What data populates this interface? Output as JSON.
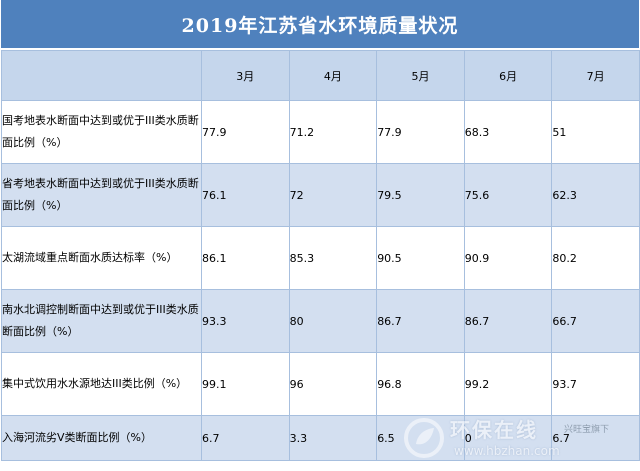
{
  "title": "2019年江苏省水环境质量状况",
  "columns": [
    "",
    "3月",
    "4月",
    "5月",
    "6月",
    "7月"
  ],
  "rows": [
    {
      "label": "国考地表水断面中达到或优于III类水质断面比例（%）",
      "values": [
        "77.9",
        "71.2",
        "77.9",
        "68.3",
        "51"
      ]
    },
    {
      "label": "省考地表水断面中达到或优于III类水质断面比例（%）",
      "values": [
        "76.1",
        "72",
        "79.5",
        "75.6",
        "62.3"
      ]
    },
    {
      "label": "太湖流域重点断面水质达标率（%）",
      "values": [
        "86.1",
        "85.3",
        "90.5",
        "90.9",
        "80.2"
      ]
    },
    {
      "label": "南水北调控制断面中达到或优于III类水质断面比例（%）",
      "values": [
        "93.3",
        "80",
        "86.7",
        "86.7",
        "66.7"
      ]
    },
    {
      "label": "集中式饮用水水源地达III类比例（%）",
      "values": [
        "99.1",
        "96",
        "96.8",
        "99.2",
        "93.7"
      ]
    },
    {
      "label": "入海河流劣V类断面比例（%）",
      "values": [
        "6.7",
        "3.3",
        "6.5",
        "0",
        "6.7"
      ]
    }
  ],
  "watermark": {
    "brand": "环保在线",
    "tagline": "兴旺宝旗下",
    "url": "www.hbzhan.com"
  },
  "colors": {
    "title_bg": "#4f81bd",
    "header_bg": "#c5d6ec",
    "shaded_row_bg": "#d3dff0",
    "border": "#a7bfde"
  }
}
